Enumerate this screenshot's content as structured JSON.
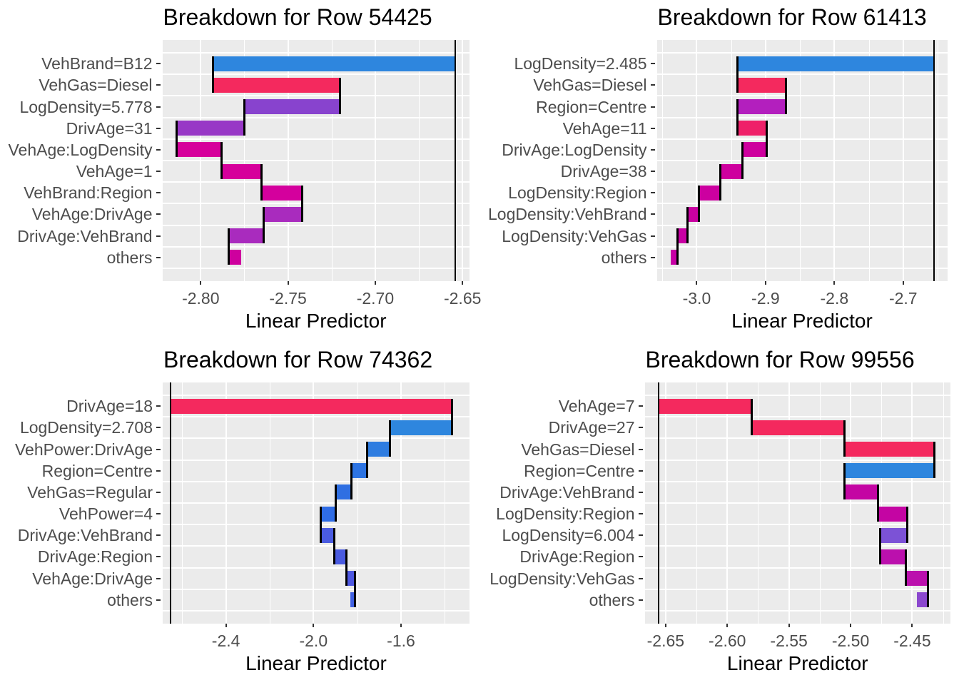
{
  "figure": {
    "background": "#FFFFFF",
    "panel_background": "#EBEBEB",
    "grid_color": "#FFFFFF",
    "axis_text_color": "#4D4D4D",
    "title_color": "#000000",
    "connector_color": "#000000",
    "baseline_color": "#000000"
  },
  "chart_data": [
    {
      "type": "bar",
      "subtype": "waterfall-breakdown",
      "title": "Breakdown for Row 54425",
      "xlabel": "Linear Predictor",
      "ylabel": "",
      "legend": "none",
      "grid": "on",
      "baseline": -2.654,
      "prediction": -2.777,
      "xlim": [
        -2.822,
        -2.646
      ],
      "x_tick_labels": [
        "-2.80",
        "-2.75",
        "-2.70",
        "-2.65"
      ],
      "x_tick_values": [
        -2.8,
        -2.75,
        -2.7,
        -2.65
      ],
      "x_minor_values": [
        -2.775,
        -2.725,
        -2.675
      ],
      "categories": [
        "VehBrand=B12",
        "VehGas=Diesel",
        "LogDensity=5.778",
        "DrivAge=31",
        "VehAge:LogDensity",
        "VehAge=1",
        "VehBrand:Region",
        "VehAge:DrivAge",
        "DrivAge:VehBrand",
        "others"
      ],
      "bars": [
        {
          "label": "VehBrand=B12",
          "from": -2.654,
          "to": -2.793,
          "contribution": -0.139,
          "color": "#2E86DE"
        },
        {
          "label": "VehGas=Diesel",
          "from": -2.793,
          "to": -2.72,
          "contribution": 0.073,
          "color": "#F4295E"
        },
        {
          "label": "LogDensity=5.778",
          "from": -2.72,
          "to": -2.775,
          "contribution": -0.054,
          "color": "#8843CE"
        },
        {
          "label": "DrivAge=31",
          "from": -2.775,
          "to": -2.814,
          "contribution": -0.04,
          "color": "#9838C6"
        },
        {
          "label": "VehAge:LogDensity",
          "from": -2.814,
          "to": -2.788,
          "contribution": 0.026,
          "color": "#D6009B"
        },
        {
          "label": "VehAge=1",
          "from": -2.788,
          "to": -2.765,
          "contribution": 0.023,
          "color": "#D6009B"
        },
        {
          "label": "VehBrand:Region",
          "from": -2.765,
          "to": -2.742,
          "contribution": 0.022,
          "color": "#D4009D"
        },
        {
          "label": "VehAge:DrivAge",
          "from": -2.742,
          "to": -2.764,
          "contribution": -0.022,
          "color": "#A92BBE"
        },
        {
          "label": "DrivAge:VehBrand",
          "from": -2.764,
          "to": -2.784,
          "contribution": -0.02,
          "color": "#A92BBE"
        },
        {
          "label": "others",
          "from": -2.784,
          "to": -2.777,
          "contribution": 0.007,
          "color": "#CE009E"
        }
      ]
    },
    {
      "type": "bar",
      "subtype": "waterfall-breakdown",
      "title": "Breakdown for Row 61413",
      "xlabel": "Linear Predictor",
      "ylabel": "",
      "legend": "none",
      "grid": "on",
      "baseline": -2.655,
      "prediction": -3.038,
      "xlim": [
        -3.058,
        -2.636
      ],
      "x_tick_labels": [
        "-3.0",
        "-2.9",
        "-2.8",
        "-2.7"
      ],
      "x_tick_values": [
        -3.0,
        -2.9,
        -2.8,
        -2.7
      ],
      "x_minor_values": [
        -3.05,
        -2.95,
        -2.85,
        -2.75,
        -2.65
      ],
      "categories": [
        "LogDensity=2.485",
        "VehGas=Diesel",
        "Region=Centre",
        "VehAge=11",
        "DrivAge:LogDensity",
        "DrivAge=38",
        "LogDensity:Region",
        "LogDensity:VehBrand",
        "LogDensity:VehGas",
        "others"
      ],
      "bars": [
        {
          "label": "LogDensity=2.485",
          "from": -2.655,
          "to": -2.941,
          "contribution": -0.286,
          "color": "#2E86DE"
        },
        {
          "label": "VehGas=Diesel",
          "from": -2.941,
          "to": -2.87,
          "contribution": 0.071,
          "color": "#F4295E"
        },
        {
          "label": "Region=Centre",
          "from": -2.87,
          "to": -2.941,
          "contribution": -0.071,
          "color": "#B31FBE"
        },
        {
          "label": "VehAge=11",
          "from": -2.941,
          "to": -2.898,
          "contribution": 0.043,
          "color": "#EF2069"
        },
        {
          "label": "DrivAge:LogDensity",
          "from": -2.898,
          "to": -2.934,
          "contribution": -0.036,
          "color": "#CE009E"
        },
        {
          "label": "DrivAge=38",
          "from": -2.934,
          "to": -2.966,
          "contribution": -0.032,
          "color": "#CE009E"
        },
        {
          "label": "LogDensity:Region",
          "from": -2.966,
          "to": -2.997,
          "contribution": -0.031,
          "color": "#CC00A0"
        },
        {
          "label": "LogDensity:VehBrand",
          "from": -2.997,
          "to": -3.013,
          "contribution": -0.016,
          "color": "#CA00A2"
        },
        {
          "label": "LogDensity:VehGas",
          "from": -3.013,
          "to": -3.028,
          "contribution": -0.015,
          "color": "#C800A3"
        },
        {
          "label": "others",
          "from": -3.028,
          "to": -3.038,
          "contribution": -0.01,
          "color": "#C600A5"
        }
      ]
    },
    {
      "type": "bar",
      "subtype": "waterfall-breakdown",
      "title": "Breakdown for Row 74362",
      "xlabel": "Linear Predictor",
      "ylabel": "",
      "legend": "none",
      "grid": "on",
      "baseline": -2.654,
      "prediction": -1.833,
      "xlim": [
        -2.689,
        -1.287
      ],
      "x_tick_labels": [
        "-2.4",
        "-2.0",
        "-1.6"
      ],
      "x_tick_values": [
        -2.4,
        -2.0,
        -1.6
      ],
      "x_minor_values": [
        -2.6,
        -2.2,
        -1.8,
        -1.4
      ],
      "categories": [
        "DrivAge=18",
        "LogDensity=2.708",
        "VehPower:DrivAge",
        "Region=Centre",
        "VehGas=Regular",
        "VehPower=4",
        "DrivAge:VehBrand",
        "DrivAge:Region",
        "VehAge:DrivAge",
        "others"
      ],
      "bars": [
        {
          "label": "DrivAge=18",
          "from": -2.654,
          "to": -1.368,
          "contribution": 1.286,
          "color": "#F4295E"
        },
        {
          "label": "LogDensity=2.708",
          "from": -1.368,
          "to": -1.652,
          "contribution": -0.284,
          "color": "#2E86DE"
        },
        {
          "label": "VehPower:DrivAge",
          "from": -1.652,
          "to": -1.754,
          "contribution": -0.102,
          "color": "#2E7CE0"
        },
        {
          "label": "Region=Centre",
          "from": -1.754,
          "to": -1.827,
          "contribution": -0.073,
          "color": "#2D74E2"
        },
        {
          "label": "VehGas=Regular",
          "from": -1.827,
          "to": -1.897,
          "contribution": -0.07,
          "color": "#2F6FE2"
        },
        {
          "label": "VehPower=4",
          "from": -1.897,
          "to": -1.966,
          "contribution": -0.069,
          "color": "#2F6CE5"
        },
        {
          "label": "DrivAge:VehBrand",
          "from": -1.966,
          "to": -1.906,
          "contribution": 0.06,
          "color": "#4A5BE0"
        },
        {
          "label": "DrivAge:Region",
          "from": -1.906,
          "to": -1.848,
          "contribution": 0.058,
          "color": "#4A5BE0"
        },
        {
          "label": "VehAge:DrivAge",
          "from": -1.848,
          "to": -1.81,
          "contribution": 0.038,
          "color": "#4E58E1"
        },
        {
          "label": "others",
          "from": -1.81,
          "to": -1.833,
          "contribution": -0.023,
          "color": "#4060E2"
        }
      ]
    },
    {
      "type": "bar",
      "subtype": "waterfall-breakdown",
      "title": "Breakdown for Row 99556",
      "xlabel": "Linear Predictor",
      "ylabel": "",
      "legend": "none",
      "grid": "on",
      "baseline": -2.656,
      "prediction": -2.446,
      "xlim": [
        -2.667,
        -2.419
      ],
      "x_tick_labels": [
        "-2.65",
        "-2.60",
        "-2.55",
        "-2.50",
        "-2.45"
      ],
      "x_tick_values": [
        -2.65,
        -2.6,
        -2.55,
        -2.5,
        -2.45
      ],
      "x_minor_values": [
        -2.625,
        -2.575,
        -2.525,
        -2.475,
        -2.425
      ],
      "categories": [
        "VehAge=7",
        "DrivAge=27",
        "VehGas=Diesel",
        "Region=Centre",
        "DrivAge:VehBrand",
        "LogDensity:Region",
        "LogDensity=6.004",
        "DrivAge:Region",
        "LogDensity:VehGas",
        "others"
      ],
      "bars": [
        {
          "label": "VehAge=7",
          "from": -2.656,
          "to": -2.58,
          "contribution": 0.076,
          "color": "#F4295E"
        },
        {
          "label": "DrivAge=27",
          "from": -2.58,
          "to": -2.505,
          "contribution": 0.075,
          "color": "#F4295E"
        },
        {
          "label": "VehGas=Diesel",
          "from": -2.505,
          "to": -2.432,
          "contribution": 0.073,
          "color": "#F4295E"
        },
        {
          "label": "Region=Centre",
          "from": -2.432,
          "to": -2.505,
          "contribution": -0.073,
          "color": "#2E86DE"
        },
        {
          "label": "DrivAge:VehBrand",
          "from": -2.505,
          "to": -2.478,
          "contribution": 0.027,
          "color": "#C405A3"
        },
        {
          "label": "LogDensity:Region",
          "from": -2.478,
          "to": -2.454,
          "contribution": 0.024,
          "color": "#C405A3"
        },
        {
          "label": "LogDensity=6.004",
          "from": -2.454,
          "to": -2.476,
          "contribution": -0.022,
          "color": "#7C52D6"
        },
        {
          "label": "DrivAge:Region",
          "from": -2.476,
          "to": -2.455,
          "contribution": 0.021,
          "color": "#BB10AD"
        },
        {
          "label": "LogDensity:VehGas",
          "from": -2.455,
          "to": -2.437,
          "contribution": 0.018,
          "color": "#BB10AD"
        },
        {
          "label": "others",
          "from": -2.437,
          "to": -2.446,
          "contribution": -0.009,
          "color": "#8B48CE"
        }
      ]
    }
  ]
}
